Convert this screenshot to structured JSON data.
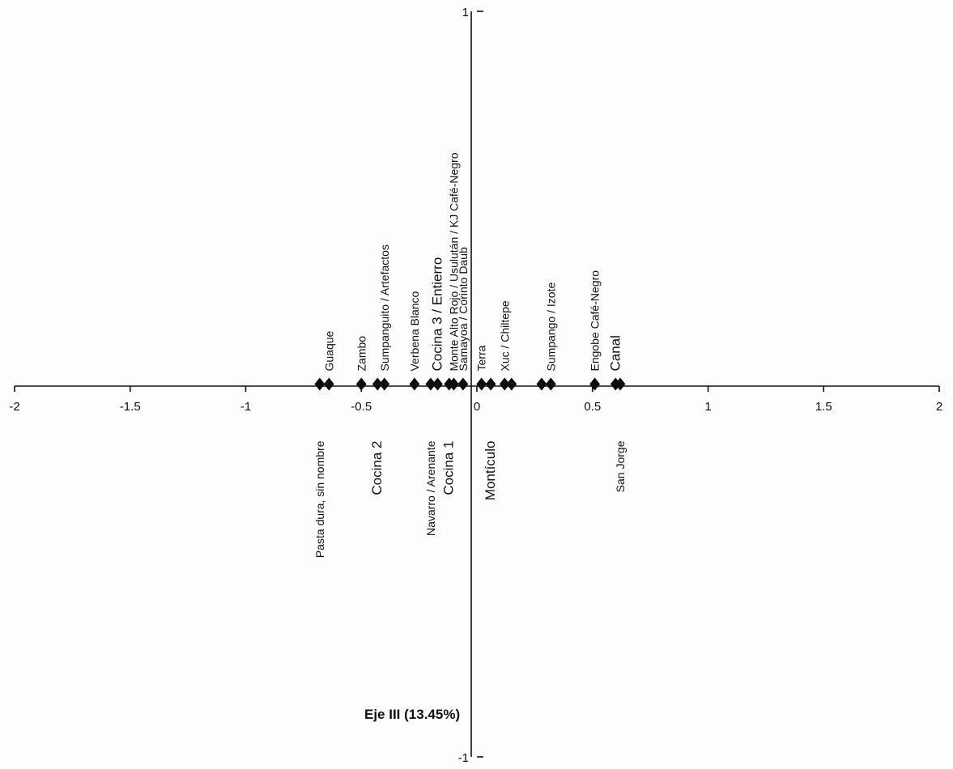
{
  "chart_data": {
    "type": "scatter",
    "title": "",
    "xlabel": "",
    "ylabel": "Eje  III  (13.45%)",
    "xlim": [
      -2,
      2
    ],
    "ylim": [
      -1,
      1
    ],
    "x_ticks": [
      "-2",
      "-1.5",
      "-1",
      "-0.5",
      "0",
      "0.5",
      "1",
      "1.5",
      "2"
    ],
    "y_ticks": [
      "1",
      "-1"
    ],
    "grid": false,
    "points": [
      {
        "x": -0.68,
        "y": 0,
        "label": "Pasta dura, sin nombre",
        "side": "below"
      },
      {
        "x": -0.64,
        "y": 0,
        "label": "Guaque",
        "side": "above"
      },
      {
        "x": -0.5,
        "y": 0,
        "label": "Zambo",
        "side": "above"
      },
      {
        "x": -0.43,
        "y": 0,
        "label": "Cocina  2",
        "side": "below",
        "big": true
      },
      {
        "x": -0.4,
        "y": 0,
        "label": "Sumpanguito / Artefactos",
        "side": "above"
      },
      {
        "x": -0.27,
        "y": 0,
        "label": "Verbena Blanco",
        "side": "above"
      },
      {
        "x": -0.2,
        "y": 0,
        "label": "Navarro / Arenante",
        "side": "below"
      },
      {
        "x": -0.17,
        "y": 0,
        "label": "Cocina  3  /  Entierro",
        "side": "above",
        "big": true
      },
      {
        "x": -0.12,
        "y": 0,
        "label": "Cocina  1",
        "side": "below",
        "big": true
      },
      {
        "x": -0.1,
        "y": 0,
        "label": "Monte Alto Rojo / Usulután / KJ Café-Negro",
        "side": "above"
      },
      {
        "x": -0.06,
        "y": 0,
        "label": "Samayoa / Corinto Daub",
        "side": "above"
      },
      {
        "x": 0.02,
        "y": 0,
        "label": "Terra",
        "side": "above"
      },
      {
        "x": 0.06,
        "y": 0,
        "label": "Montículo",
        "side": "below",
        "big": true
      },
      {
        "x": 0.12,
        "y": 0,
        "label": "Xuc / Chiltepe",
        "side": "above"
      },
      {
        "x": 0.15,
        "y": 0,
        "label": "",
        "side": "above"
      },
      {
        "x": 0.28,
        "y": 0,
        "label": "",
        "side": "above"
      },
      {
        "x": 0.32,
        "y": 0,
        "label": "Sumpango / Izote",
        "side": "above"
      },
      {
        "x": 0.51,
        "y": 0,
        "label": "Engobe Café-Negro",
        "side": "above"
      },
      {
        "x": 0.6,
        "y": 0,
        "label": "Canal",
        "side": "above",
        "big": true
      },
      {
        "x": 0.62,
        "y": 0,
        "label": "San Jorge",
        "side": "below"
      }
    ]
  }
}
